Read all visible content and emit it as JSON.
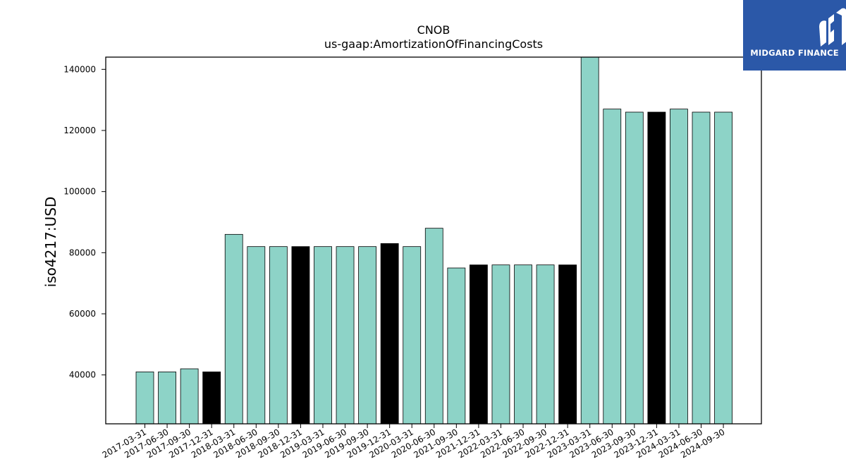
{
  "chart_data": {
    "type": "bar",
    "title": "CNOB",
    "subtitle": "us-gaap:AmortizationOfFinancingCosts",
    "ylabel": "iso4217:USD",
    "xlabel": "",
    "ylim": [
      24000,
      144000
    ],
    "yticks": [
      40000,
      60000,
      80000,
      100000,
      120000,
      140000
    ],
    "ytick_labels": [
      "40000",
      "60000",
      "80000",
      "100000",
      "120000",
      "140000"
    ],
    "categories": [
      "2017-03-31",
      "2017-06-30",
      "2017-09-30",
      "2017-12-31",
      "2018-03-31",
      "2018-06-30",
      "2018-09-30",
      "2018-12-31",
      "2019-03-31",
      "2019-06-30",
      "2019-09-30",
      "2019-12-31",
      "2020-03-31",
      "2020-06-30",
      "2021-09-30",
      "2021-12-31",
      "2022-03-31",
      "2022-06-30",
      "2022-09-30",
      "2022-12-31",
      "2023-03-31",
      "2023-06-30",
      "2023-09-30",
      "2023-12-31",
      "2024-03-31",
      "2024-06-30",
      "2024-09-30"
    ],
    "values": [
      41000,
      41000,
      42000,
      41000,
      86000,
      82000,
      82000,
      82000,
      82000,
      82000,
      82000,
      83000,
      82000,
      88000,
      75000,
      76000,
      76000,
      76000,
      76000,
      76000,
      146000,
      127000,
      126000,
      126000,
      127000,
      126000,
      126000
    ],
    "highlight_categories": [
      "2017-12-31",
      "2018-12-31",
      "2019-12-31",
      "2021-12-31",
      "2022-12-31",
      "2023-12-31"
    ],
    "colors": {
      "bar": "#8dd3c7",
      "highlight": "#000000",
      "edge": "#000000"
    },
    "grid": false,
    "legend": "none"
  },
  "logo": {
    "text": "MIDGARD FINANCE"
  }
}
